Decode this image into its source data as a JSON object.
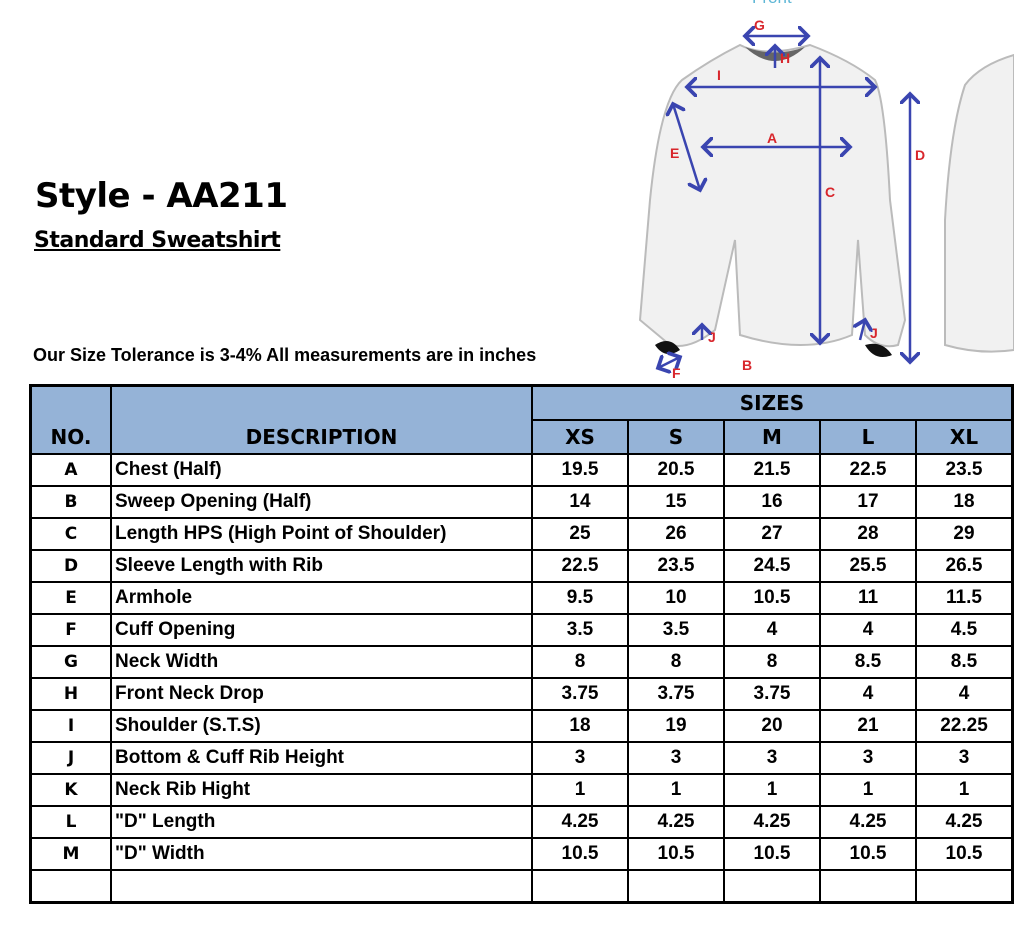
{
  "diagram": {
    "label": "Front",
    "letters": [
      "G",
      "H",
      "I",
      "A",
      "E",
      "C",
      "D",
      "J",
      "J",
      "F",
      "B"
    ],
    "arrow_color": "#3a45b0",
    "letter_color": "#d8262c"
  },
  "header": {
    "title": "Style - AA211",
    "subtitle": "Standard Sweatshirt",
    "tolerance": "Our Size Tolerance is 3-4%  All measurements are in inches"
  },
  "table": {
    "header_color": "#95b3d7",
    "col_no": "NO.",
    "col_desc": "DESCRIPTION",
    "sizes_label": "SIZES",
    "sizes": [
      "XS",
      "S",
      "M",
      "L",
      "XL"
    ],
    "rows": [
      {
        "no": "A",
        "desc": "Chest (Half)",
        "values": [
          "19.5",
          "20.5",
          "21.5",
          "22.5",
          "23.5"
        ]
      },
      {
        "no": "B",
        "desc": "Sweep Opening (Half)",
        "values": [
          "14",
          "15",
          "16",
          "17",
          "18"
        ]
      },
      {
        "no": "C",
        "desc": "Length HPS (High Point of Shoulder)",
        "values": [
          "25",
          "26",
          "27",
          "28",
          "29"
        ]
      },
      {
        "no": "D",
        "desc": "Sleeve Length with Rib",
        "values": [
          "22.5",
          "23.5",
          "24.5",
          "25.5",
          "26.5"
        ]
      },
      {
        "no": "E",
        "desc": "Armhole",
        "values": [
          "9.5",
          "10",
          "10.5",
          "11",
          "11.5"
        ]
      },
      {
        "no": "F",
        "desc": "Cuff Opening",
        "values": [
          "3.5",
          "3.5",
          "4",
          "4",
          "4.5"
        ]
      },
      {
        "no": "G",
        "desc": "Neck Width",
        "values": [
          "8",
          "8",
          "8",
          "8.5",
          "8.5"
        ]
      },
      {
        "no": "H",
        "desc": "Front Neck Drop",
        "values": [
          "3.75",
          "3.75",
          "3.75",
          "4",
          "4"
        ]
      },
      {
        "no": "I",
        "desc": "Shoulder (S.T.S)",
        "values": [
          "18",
          "19",
          "20",
          "21",
          "22.25"
        ]
      },
      {
        "no": "J",
        "desc": "Bottom & Cuff Rib Height",
        "values": [
          "3",
          "3",
          "3",
          "3",
          "3"
        ]
      },
      {
        "no": "K",
        "desc": "Neck Rib Hight",
        "values": [
          "1",
          "1",
          "1",
          "1",
          "1"
        ]
      },
      {
        "no": "L",
        "desc": "\"D\" Length",
        "values": [
          "4.25",
          "4.25",
          "4.25",
          "4.25",
          "4.25"
        ]
      },
      {
        "no": "M",
        "desc": "\"D\" Width",
        "values": [
          "10.5",
          "10.5",
          "10.5",
          "10.5",
          "10.5"
        ]
      }
    ]
  }
}
